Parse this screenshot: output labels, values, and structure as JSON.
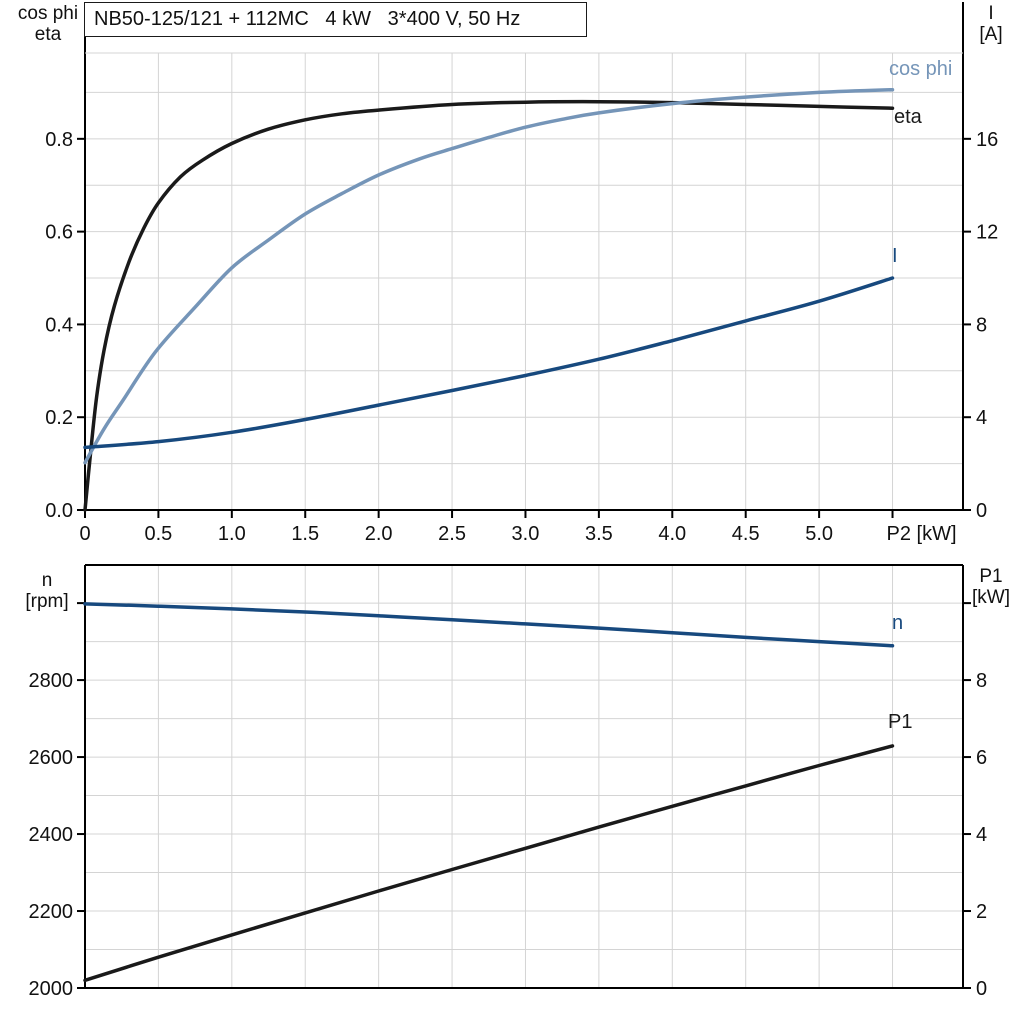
{
  "title_box": "NB50-125/121 + 112MC   4 kW   3*400 V, 50 Hz",
  "colors": {
    "black_curve": "#1a1a1a",
    "light_blue": "#7595b8",
    "dark_blue": "#17497e",
    "grid": "#d4d4d4",
    "frame": "#000000",
    "text": "#111111"
  },
  "chart_data": [
    {
      "type": "line",
      "title": "NB50-125/121 + 112MC 4 kW 3*400 V, 50 Hz",
      "x": {
        "label": "P2 [kW]",
        "range": [
          0,
          5.98
        ],
        "grid_step": 0.5,
        "ticks": [
          0,
          0.5,
          1.0,
          1.5,
          2.0,
          2.5,
          3.0,
          3.5,
          4.0,
          4.5,
          5.0,
          5.5
        ],
        "tick_labels": [
          "0",
          "0.5",
          "1.0",
          "1.5",
          "2.0",
          "2.5",
          "3.0",
          "3.5",
          "4.0",
          "4.5",
          "5.0",
          ""
        ]
      },
      "y_left": {
        "label_lines": [
          "cos phi",
          "eta"
        ],
        "range": [
          0,
          0.985
        ],
        "grid_step": 0.1,
        "ticks": [
          0.0,
          0.2,
          0.4,
          0.6,
          0.8
        ],
        "tick_labels": [
          "0.0",
          "0.2",
          "0.4",
          "0.6",
          "0.8"
        ]
      },
      "y_right": {
        "label_lines": [
          "I",
          "[A]"
        ],
        "range": [
          0,
          19.7
        ],
        "ticks": [
          0,
          4,
          8,
          12,
          16
        ],
        "tick_labels": [
          "0",
          "4",
          "8",
          "12",
          "16"
        ]
      },
      "legend_position": "curve-end-labels",
      "grid": true,
      "series": [
        {
          "name": "eta",
          "label": "eta",
          "axis": "left",
          "color_key": "black_curve",
          "points": [
            [
              0,
              0
            ],
            [
              0.04,
              0.13
            ],
            [
              0.08,
              0.245
            ],
            [
              0.13,
              0.345
            ],
            [
              0.2,
              0.44
            ],
            [
              0.3,
              0.535
            ],
            [
              0.4,
              0.607
            ],
            [
              0.5,
              0.662
            ],
            [
              0.65,
              0.718
            ],
            [
              0.8,
              0.754
            ],
            [
              1.0,
              0.79
            ],
            [
              1.25,
              0.821
            ],
            [
              1.5,
              0.841
            ],
            [
              1.75,
              0.854
            ],
            [
              2.0,
              0.862
            ],
            [
              2.5,
              0.874
            ],
            [
              3.0,
              0.879
            ],
            [
              3.5,
              0.88
            ],
            [
              4.0,
              0.878
            ],
            [
              4.5,
              0.874
            ],
            [
              5.0,
              0.87
            ],
            [
              5.5,
              0.866
            ]
          ]
        },
        {
          "name": "cos phi",
          "label": "cos phi",
          "axis": "left",
          "color_key": "light_blue",
          "points": [
            [
              0,
              0.102
            ],
            [
              0.13,
              0.175
            ],
            [
              0.26,
              0.237
            ],
            [
              0.48,
              0.341
            ],
            [
              0.75,
              0.437
            ],
            [
              1.0,
              0.522
            ],
            [
              1.25,
              0.582
            ],
            [
              1.5,
              0.638
            ],
            [
              1.75,
              0.682
            ],
            [
              2.0,
              0.722
            ],
            [
              2.28,
              0.757
            ],
            [
              2.5,
              0.779
            ],
            [
              2.75,
              0.803
            ],
            [
              3.0,
              0.825
            ],
            [
              3.25,
              0.842
            ],
            [
              3.5,
              0.856
            ],
            [
              4.0,
              0.876
            ],
            [
              4.5,
              0.89
            ],
            [
              5.0,
              0.9
            ],
            [
              5.5,
              0.906
            ]
          ]
        },
        {
          "name": "I",
          "label": "I",
          "axis": "right",
          "color_key": "dark_blue",
          "points": [
            [
              0,
              2.7
            ],
            [
              0.5,
              2.95
            ],
            [
              1.0,
              3.35
            ],
            [
              1.5,
              3.9
            ],
            [
              2.0,
              4.52
            ],
            [
              2.5,
              5.15
            ],
            [
              3.0,
              5.8
            ],
            [
              3.5,
              6.5
            ],
            [
              4.0,
              7.3
            ],
            [
              4.5,
              8.15
            ],
            [
              5.0,
              9.0
            ],
            [
              5.5,
              10.0
            ]
          ]
        }
      ]
    },
    {
      "type": "line",
      "title": "Speed and input power vs P2",
      "x": {
        "label": "",
        "range": [
          0,
          5.98
        ],
        "grid_step": 0.5,
        "ticks": [],
        "tick_labels": []
      },
      "y_left": {
        "label_lines": [
          "n",
          "[rpm]"
        ],
        "range": [
          2000,
          3099
        ],
        "grid_step": 100,
        "ticks": [
          2000,
          2200,
          2400,
          2600,
          2800,
          3000
        ],
        "tick_labels": [
          "2000",
          "2200",
          "2400",
          "2600",
          "2800",
          ""
        ]
      },
      "y_right": {
        "label_lines": [
          "P1",
          "[kW]"
        ],
        "range": [
          0,
          10.99
        ],
        "ticks": [
          0,
          2,
          4,
          6,
          8,
          10
        ],
        "tick_labels": [
          "0",
          "2",
          "4",
          "6",
          "8",
          ""
        ]
      },
      "legend_position": "curve-end-labels",
      "grid": true,
      "series": [
        {
          "name": "n",
          "label": "n",
          "axis": "left",
          "color_key": "dark_blue",
          "points": [
            [
              0,
              2998
            ],
            [
              0.5,
              2992
            ],
            [
              1.0,
              2985
            ],
            [
              1.5,
              2977
            ],
            [
              2.0,
              2967
            ],
            [
              2.5,
              2957
            ],
            [
              3.0,
              2946
            ],
            [
              3.5,
              2935
            ],
            [
              4.0,
              2923
            ],
            [
              4.5,
              2911
            ],
            [
              5.0,
              2900
            ],
            [
              5.5,
              2889
            ]
          ]
        },
        {
          "name": "P1",
          "label": "P1",
          "axis": "right",
          "color_key": "black_curve",
          "points": [
            [
              0,
              0.2
            ],
            [
              0.5,
              0.8
            ],
            [
              1.0,
              1.38
            ],
            [
              1.5,
              1.95
            ],
            [
              2.0,
              2.52
            ],
            [
              2.5,
              3.08
            ],
            [
              3.0,
              3.63
            ],
            [
              3.5,
              4.18
            ],
            [
              4.0,
              4.72
            ],
            [
              4.5,
              5.25
            ],
            [
              5.0,
              5.78
            ],
            [
              5.5,
              6.29
            ]
          ]
        }
      ]
    }
  ]
}
